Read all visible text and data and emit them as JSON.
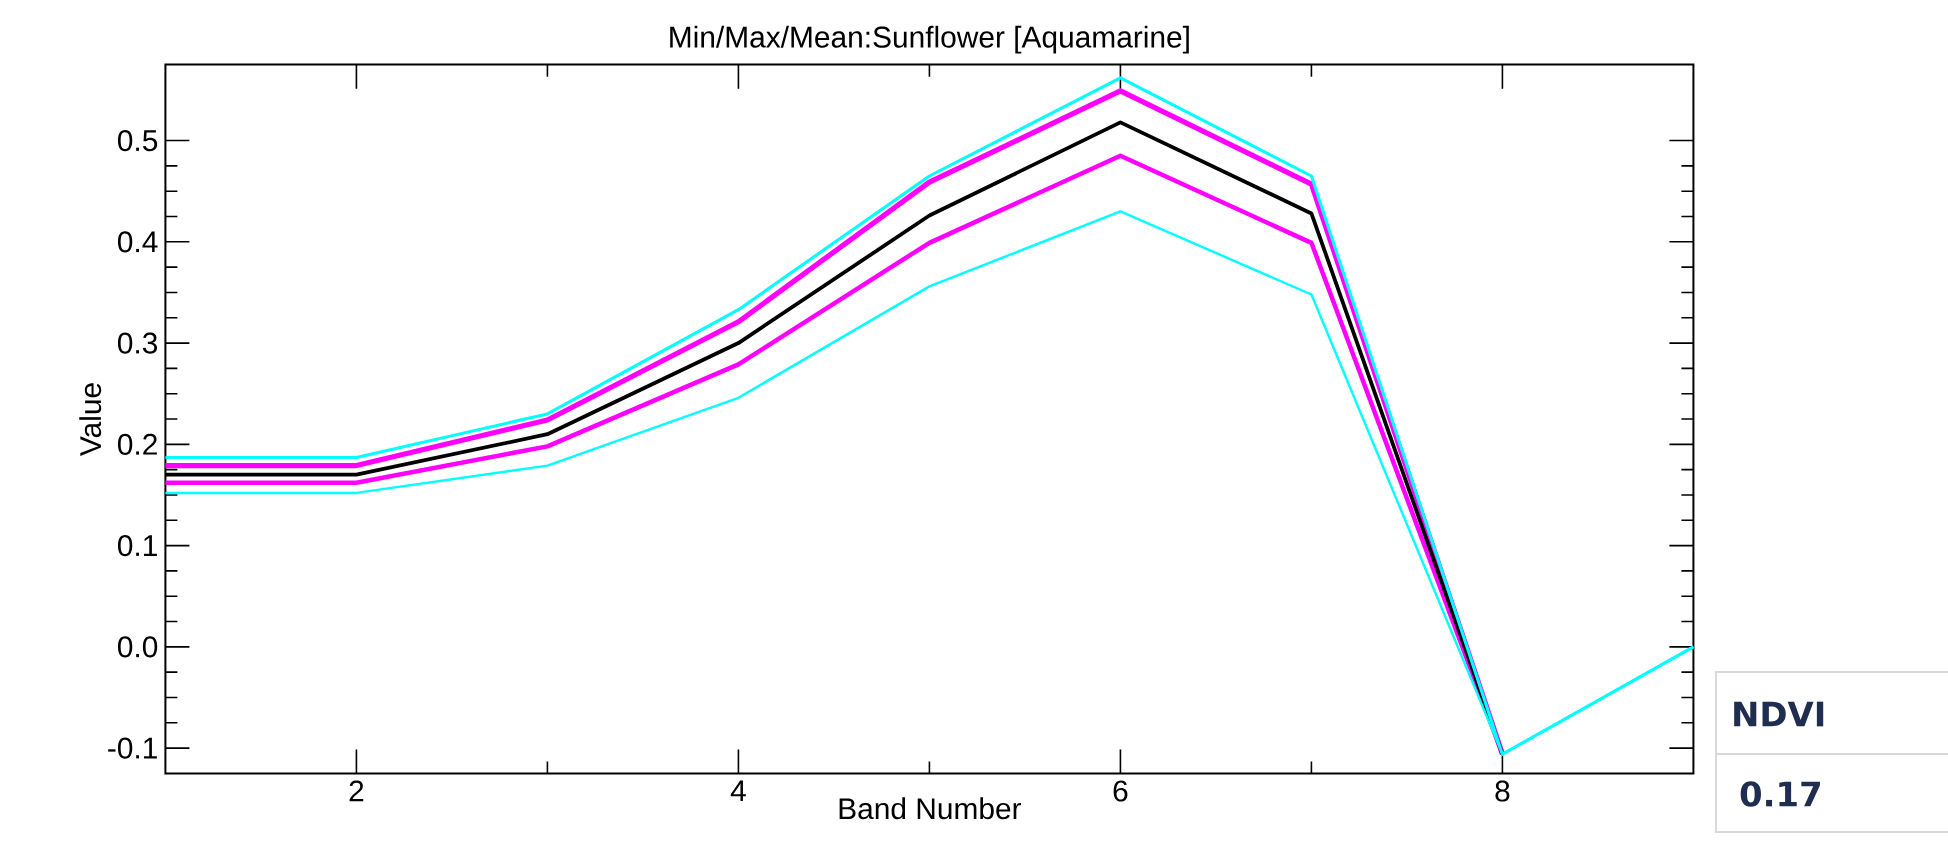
{
  "chart_data": {
    "type": "line",
    "title": "Min/Max/Mean:Sunflower [Aquamarine]",
    "xlabel": "Band Number",
    "ylabel": "Value",
    "x": [
      1,
      2,
      3,
      4,
      5,
      6,
      7,
      8,
      9
    ],
    "series": [
      {
        "color": "#ff00ff",
        "values": [
          0.179,
          0.179,
          0.224,
          0.321,
          0.459,
          0.549,
          0.457,
          -0.106,
          null
        ]
      },
      {
        "color": "#ff00ff",
        "values": [
          0.162,
          0.162,
          0.198,
          0.279,
          0.399,
          0.485,
          0.399,
          -0.106,
          null
        ]
      },
      {
        "color": "#000000",
        "values": [
          0.17,
          0.17,
          0.21,
          0.3,
          0.426,
          0.518,
          0.428,
          -0.106,
          null
        ]
      },
      {
        "color": "#00ffff",
        "values": [
          0.187,
          0.187,
          0.23,
          0.333,
          0.465,
          0.562,
          0.465,
          -0.106,
          0.0
        ]
      },
      {
        "color": "#00ffff",
        "values": [
          0.152,
          0.152,
          0.179,
          0.246,
          0.356,
          0.43,
          0.348,
          -0.106,
          0.0
        ]
      }
    ],
    "xlim": [
      1,
      9
    ],
    "ylim": [
      -0.125,
      0.575
    ],
    "xticks": [
      2,
      4,
      6,
      8
    ],
    "yticks": [
      -0.1,
      {
        "value": 0,
        "label": "0.0"
      },
      0.1,
      0.2,
      0.3,
      0.4,
      0.5
    ],
    "annotations": [
      "NDVI",
      "0.17"
    ]
  }
}
